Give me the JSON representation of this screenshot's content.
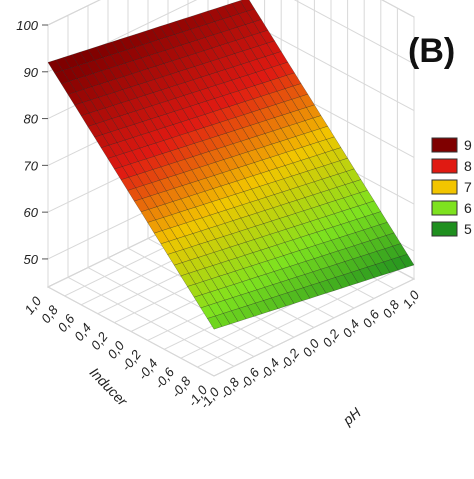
{
  "panel_label": "(B)",
  "chart_data": {
    "type": "surface3d",
    "title": "",
    "x": {
      "label": "Inducer",
      "ticks": [
        "1,0",
        "0,8",
        "0,6",
        "0,4",
        "0,2",
        "0,0",
        "-0,2",
        "-0,4",
        "-0,6",
        "-0,8",
        "-1,0"
      ],
      "range": [
        -1,
        1
      ]
    },
    "y": {
      "label": "pH",
      "ticks": [
        "-1,0",
        "-0,8",
        "-0,6",
        "-0,4",
        "-0,2",
        "0,0",
        "0,2",
        "0,4",
        "0,6",
        "0,8",
        "1,0"
      ],
      "range": [
        -1,
        1
      ]
    },
    "z": {
      "label": "",
      "ticks": [
        "50",
        "60",
        "70",
        "80",
        "90",
        "100"
      ],
      "range": [
        44,
        100
      ]
    },
    "surface": {
      "corner_values": {
        "inducer_1_pH_-1": 92,
        "inducer_1_pH_1": 85,
        "inducer_-1_pH_-1": 54,
        "inducer_-1_pH_1": 47
      },
      "grid": 25
    },
    "legend": {
      "position": "right",
      "items": [
        {
          "label": "9",
          "color": "#7f0000"
        },
        {
          "label": "8",
          "color": "#e01a12"
        },
        {
          "label": "7",
          "color": "#f2c500"
        },
        {
          "label": "6",
          "color": "#7ee21f"
        },
        {
          "label": "5",
          "color": "#1f8f1f"
        }
      ]
    },
    "grid_lines": true
  }
}
